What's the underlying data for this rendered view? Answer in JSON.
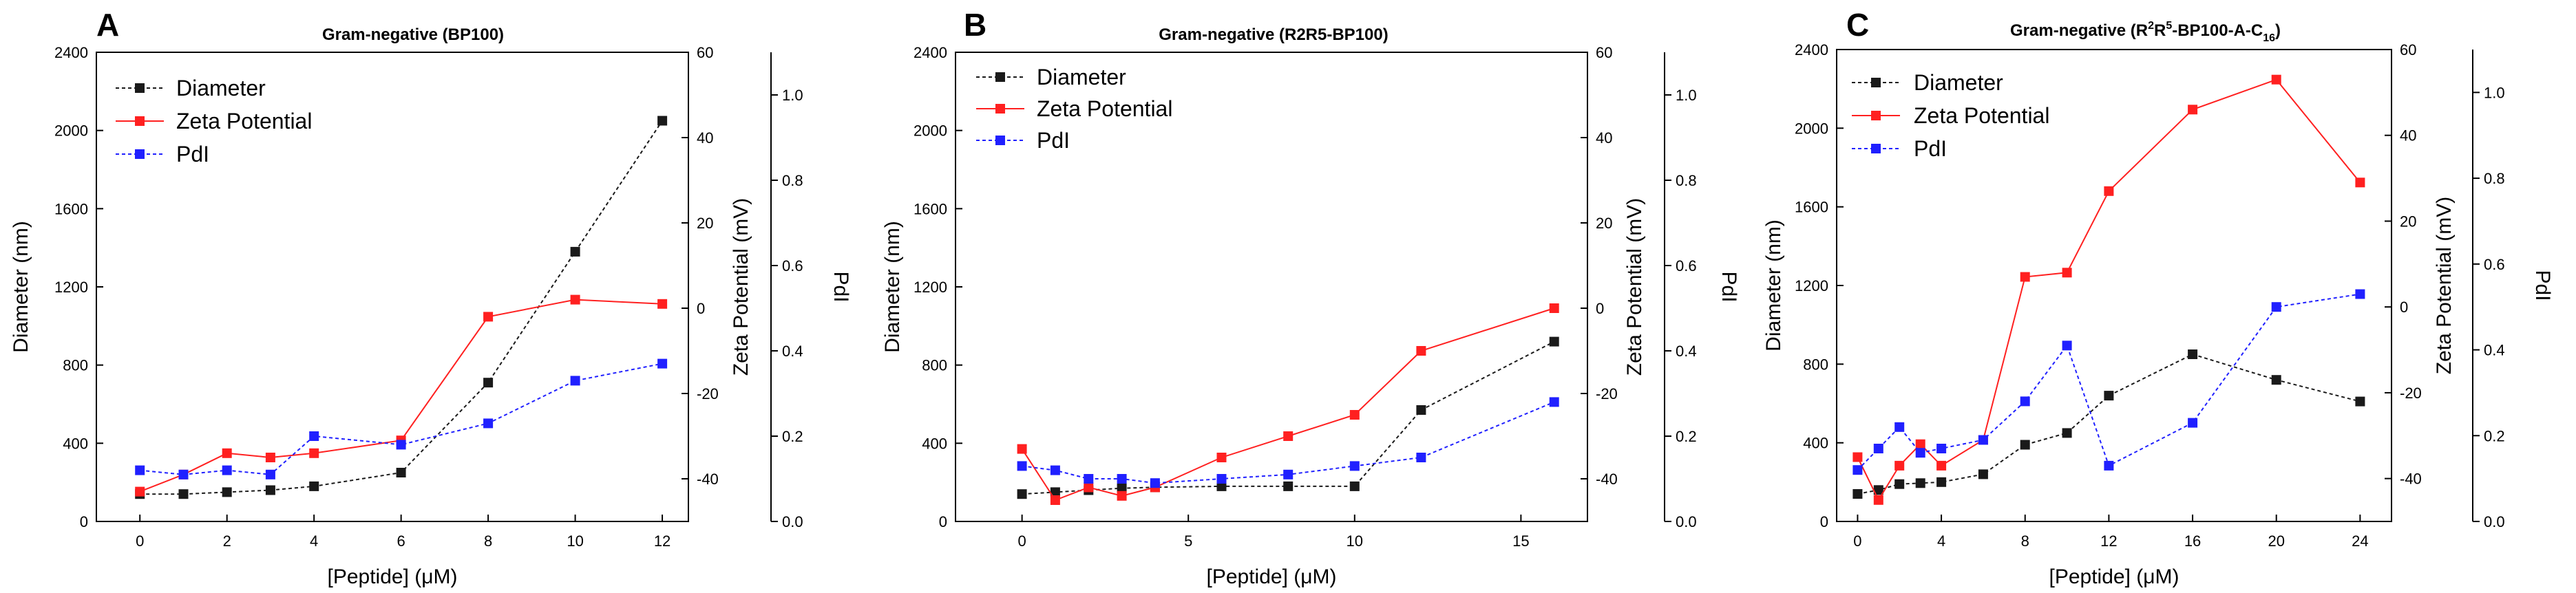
{
  "colors": {
    "diameter": "#1a1a1a",
    "zeta": "#ff2020",
    "pdi": "#2020ff"
  },
  "chart_data": [
    {
      "type": "line",
      "panel": "A",
      "title": "Gram-negative (BP100)",
      "xlabel": "[Peptide] (μM)",
      "ylabel": "Diameter (nm)",
      "y2label": "Zeta Potential (mV)",
      "y3label": "PdI",
      "xlim": [
        -1,
        12.6
      ],
      "ylim": [
        0,
        2400
      ],
      "y2lim": [
        -50,
        60
      ],
      "y3lim": [
        0,
        1.1
      ],
      "xticks": [
        0,
        2,
        4,
        6,
        8,
        10,
        12
      ],
      "yticks": [
        0,
        400,
        800,
        1200,
        1600,
        2000,
        2400
      ],
      "y2ticks": [
        -40,
        -20,
        0,
        20,
        40,
        60
      ],
      "y3ticks": [
        0.0,
        0.2,
        0.4,
        0.6,
        0.8,
        1.0
      ],
      "y3ticklabels": [
        "0.0",
        "0.2",
        "0.4",
        "0.6",
        "0.8",
        "1.0"
      ],
      "legend": [
        "Diameter",
        "Zeta Potential",
        "PdI"
      ],
      "series": [
        {
          "name": "Diameter",
          "axis": "left",
          "x": [
            0,
            1,
            2,
            3,
            4,
            6,
            8,
            10,
            12
          ],
          "values": [
            140,
            140,
            150,
            160,
            180,
            250,
            710,
            1380,
            2050
          ]
        },
        {
          "name": "Zeta Potential",
          "axis": "right",
          "x": [
            0,
            1,
            2,
            3,
            4,
            6,
            8,
            10,
            12
          ],
          "values": [
            -43,
            -39,
            -34,
            -35,
            -34,
            -31,
            -2,
            2,
            1
          ]
        },
        {
          "name": "PdI",
          "axis": "third",
          "x": [
            0,
            1,
            2,
            3,
            4,
            6,
            8,
            10,
            12
          ],
          "values": [
            0.12,
            0.11,
            0.12,
            0.11,
            0.2,
            0.18,
            0.23,
            0.33,
            0.37
          ]
        }
      ]
    },
    {
      "type": "line",
      "panel": "B",
      "title": "Gram-negative (R2R5-BP100)",
      "xlabel": "[Peptide] (μM)",
      "ylabel": "Diameter (nm)",
      "y2label": "Zeta Potential (mV)",
      "y3label": "PdI",
      "xlim": [
        -2,
        17
      ],
      "ylim": [
        0,
        2400
      ],
      "y2lim": [
        -50,
        60
      ],
      "y3lim": [
        0,
        1.1
      ],
      "xticks": [
        0,
        5,
        10,
        15
      ],
      "yticks": [
        0,
        400,
        800,
        1200,
        1600,
        2000,
        2400
      ],
      "y2ticks": [
        -40,
        -20,
        0,
        20,
        40,
        60
      ],
      "y3ticks": [
        0.0,
        0.2,
        0.4,
        0.6,
        0.8,
        1.0
      ],
      "y3ticklabels": [
        "0.0",
        "0.2",
        "0.4",
        "0.6",
        "0.8",
        "1.0"
      ],
      "legend": [
        "Diameter",
        "Zeta Potential",
        "PdI"
      ],
      "series": [
        {
          "name": "Diameter",
          "axis": "left",
          "x": [
            0,
            1,
            2,
            3,
            4,
            6,
            8,
            10,
            12,
            16
          ],
          "values": [
            140,
            150,
            160,
            170,
            175,
            180,
            180,
            180,
            570,
            920
          ]
        },
        {
          "name": "Zeta Potential",
          "axis": "right",
          "x": [
            0,
            1,
            2,
            3,
            4,
            6,
            8,
            10,
            12,
            16
          ],
          "values": [
            -33,
            -45,
            -42,
            -44,
            -42,
            -35,
            -30,
            -25,
            -10,
            0
          ]
        },
        {
          "name": "PdI",
          "axis": "third",
          "x": [
            0,
            1,
            2,
            3,
            4,
            6,
            8,
            10,
            12,
            16
          ],
          "values": [
            0.13,
            0.12,
            0.1,
            0.1,
            0.09,
            0.1,
            0.11,
            0.13,
            0.15,
            0.28
          ]
        }
      ]
    },
    {
      "type": "line",
      "panel": "C",
      "title_main": "Gram-negative (R",
      "title_parts": [
        "2",
        "R",
        "5",
        "-BP100-A-C",
        "16",
        ")"
      ],
      "xlabel": "[Peptide] (μM)",
      "ylabel": "Diameter (nm)",
      "y2label": "Zeta Potential (mV)",
      "y3label": "PdI",
      "xlim": [
        -1,
        25.5
      ],
      "ylim": [
        0,
        2400
      ],
      "y2lim": [
        -50,
        60
      ],
      "y3lim": [
        0,
        1.1
      ],
      "xticks": [
        0,
        4,
        8,
        12,
        16,
        20,
        24
      ],
      "yticks": [
        0,
        400,
        800,
        1200,
        1600,
        2000,
        2400
      ],
      "y2ticks": [
        -40,
        -20,
        0,
        20,
        40,
        60
      ],
      "y3ticks": [
        0.0,
        0.2,
        0.4,
        0.6,
        0.8,
        1.0
      ],
      "y3ticklabels": [
        "0.0",
        "0.2",
        "0.4",
        "0.6",
        "0.8",
        "1.0"
      ],
      "legend": [
        "Diameter",
        "Zeta Potential",
        "PdI"
      ],
      "series": [
        {
          "name": "Diameter",
          "axis": "left",
          "x": [
            0,
            1,
            2,
            3,
            4,
            6,
            8,
            10,
            12,
            16,
            20,
            24
          ],
          "values": [
            140,
            160,
            190,
            195,
            200,
            240,
            390,
            450,
            640,
            850,
            720,
            610
          ]
        },
        {
          "name": "Zeta Potential",
          "axis": "right",
          "x": [
            0,
            1,
            2,
            3,
            4,
            6,
            8,
            10,
            12,
            16,
            20,
            24
          ],
          "values": [
            -35,
            -45,
            -37,
            -32,
            -37,
            -31,
            7,
            8,
            27,
            46,
            53,
            29
          ]
        },
        {
          "name": "PdI",
          "axis": "third",
          "x": [
            0,
            1,
            2,
            3,
            4,
            6,
            8,
            10,
            12,
            16,
            20,
            24
          ],
          "values": [
            0.12,
            0.17,
            0.22,
            0.16,
            0.17,
            0.19,
            0.28,
            0.41,
            0.13,
            0.23,
            0.5,
            0.53
          ]
        }
      ]
    }
  ]
}
